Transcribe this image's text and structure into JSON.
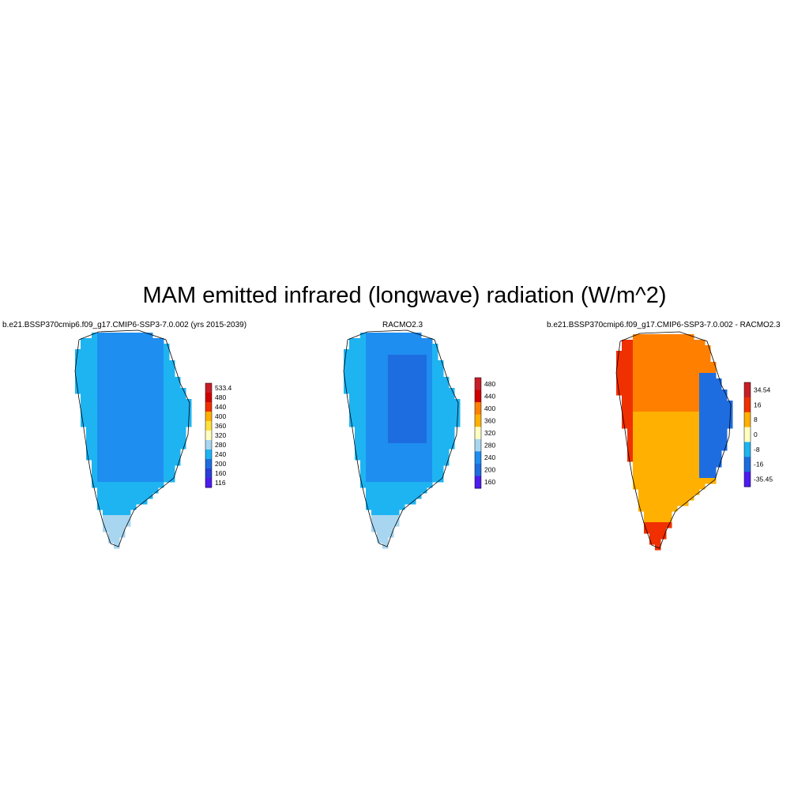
{
  "figure": {
    "title": "MAM emitted infrared (longwave) radiation (W/m^2)"
  },
  "palettes": {
    "absolute": [
      "#4c1cf0",
      "#2a3fd8",
      "#1e6de0",
      "#1e8ef0",
      "#1eb4f2",
      "#a8d6f0",
      "#ffffc0",
      "#ffe040",
      "#ffb000",
      "#ff8000",
      "#f03000",
      "#d00000",
      "#c81e28"
    ],
    "difference": [
      "#4c1cf0",
      "#2a3fd8",
      "#1e6de0",
      "#1e8ef0",
      "#1eb4f2",
      "#a8d6f0",
      "#ffffc0",
      "#ffe040",
      "#ffb000",
      "#ff8000",
      "#f03000",
      "#d00000",
      "#c81e28"
    ]
  },
  "chart_data": [
    {
      "type": "heatmap",
      "title": "b.e21.BSSP370cmip6.f09_g17.CMIP6-SSP3-7.0.002 (yrs 2015-2039)",
      "region": "Greenland",
      "colorbar": {
        "labels": [
          "116",
          "160",
          "200",
          "240",
          "280",
          "320",
          "360",
          "400",
          "440",
          "480",
          "533.4"
        ],
        "min": 116,
        "max": 533.4,
        "levels": [
          160,
          200,
          240,
          280,
          320,
          360,
          400,
          440,
          480
        ]
      },
      "dominant_values": {
        "interior": 240,
        "margins": 280,
        "south_tip": 320
      }
    },
    {
      "type": "heatmap",
      "title": "RACMO2.3",
      "region": "Greenland",
      "colorbar": {
        "labels": [
          "160",
          "200",
          "240",
          "280",
          "320",
          "360",
          "400",
          "440",
          "480"
        ],
        "levels": [
          160,
          200,
          240,
          280,
          320,
          360,
          400,
          440,
          480
        ]
      },
      "dominant_values": {
        "interior": 200,
        "mid": 240,
        "margins": 280,
        "south_tip": 320
      }
    },
    {
      "type": "heatmap",
      "title": "b.e21.BSSP370cmip6.f09_g17.CMIP6-SSP3-7.0.002 - RACMO2.3",
      "region": "Greenland",
      "colorbar": {
        "labels": [
          "-35.45",
          "-16",
          "-8",
          "0",
          "8",
          "16",
          "34.54"
        ],
        "min": -35.45,
        "max": 34.54,
        "levels": [
          -24,
          -16,
          -8,
          -4,
          0,
          4,
          8,
          12,
          16,
          24
        ]
      },
      "dominant_values": {
        "north_interior": 20,
        "south_interior": 12,
        "east_margin": -16,
        "west_margin": 24
      }
    }
  ]
}
